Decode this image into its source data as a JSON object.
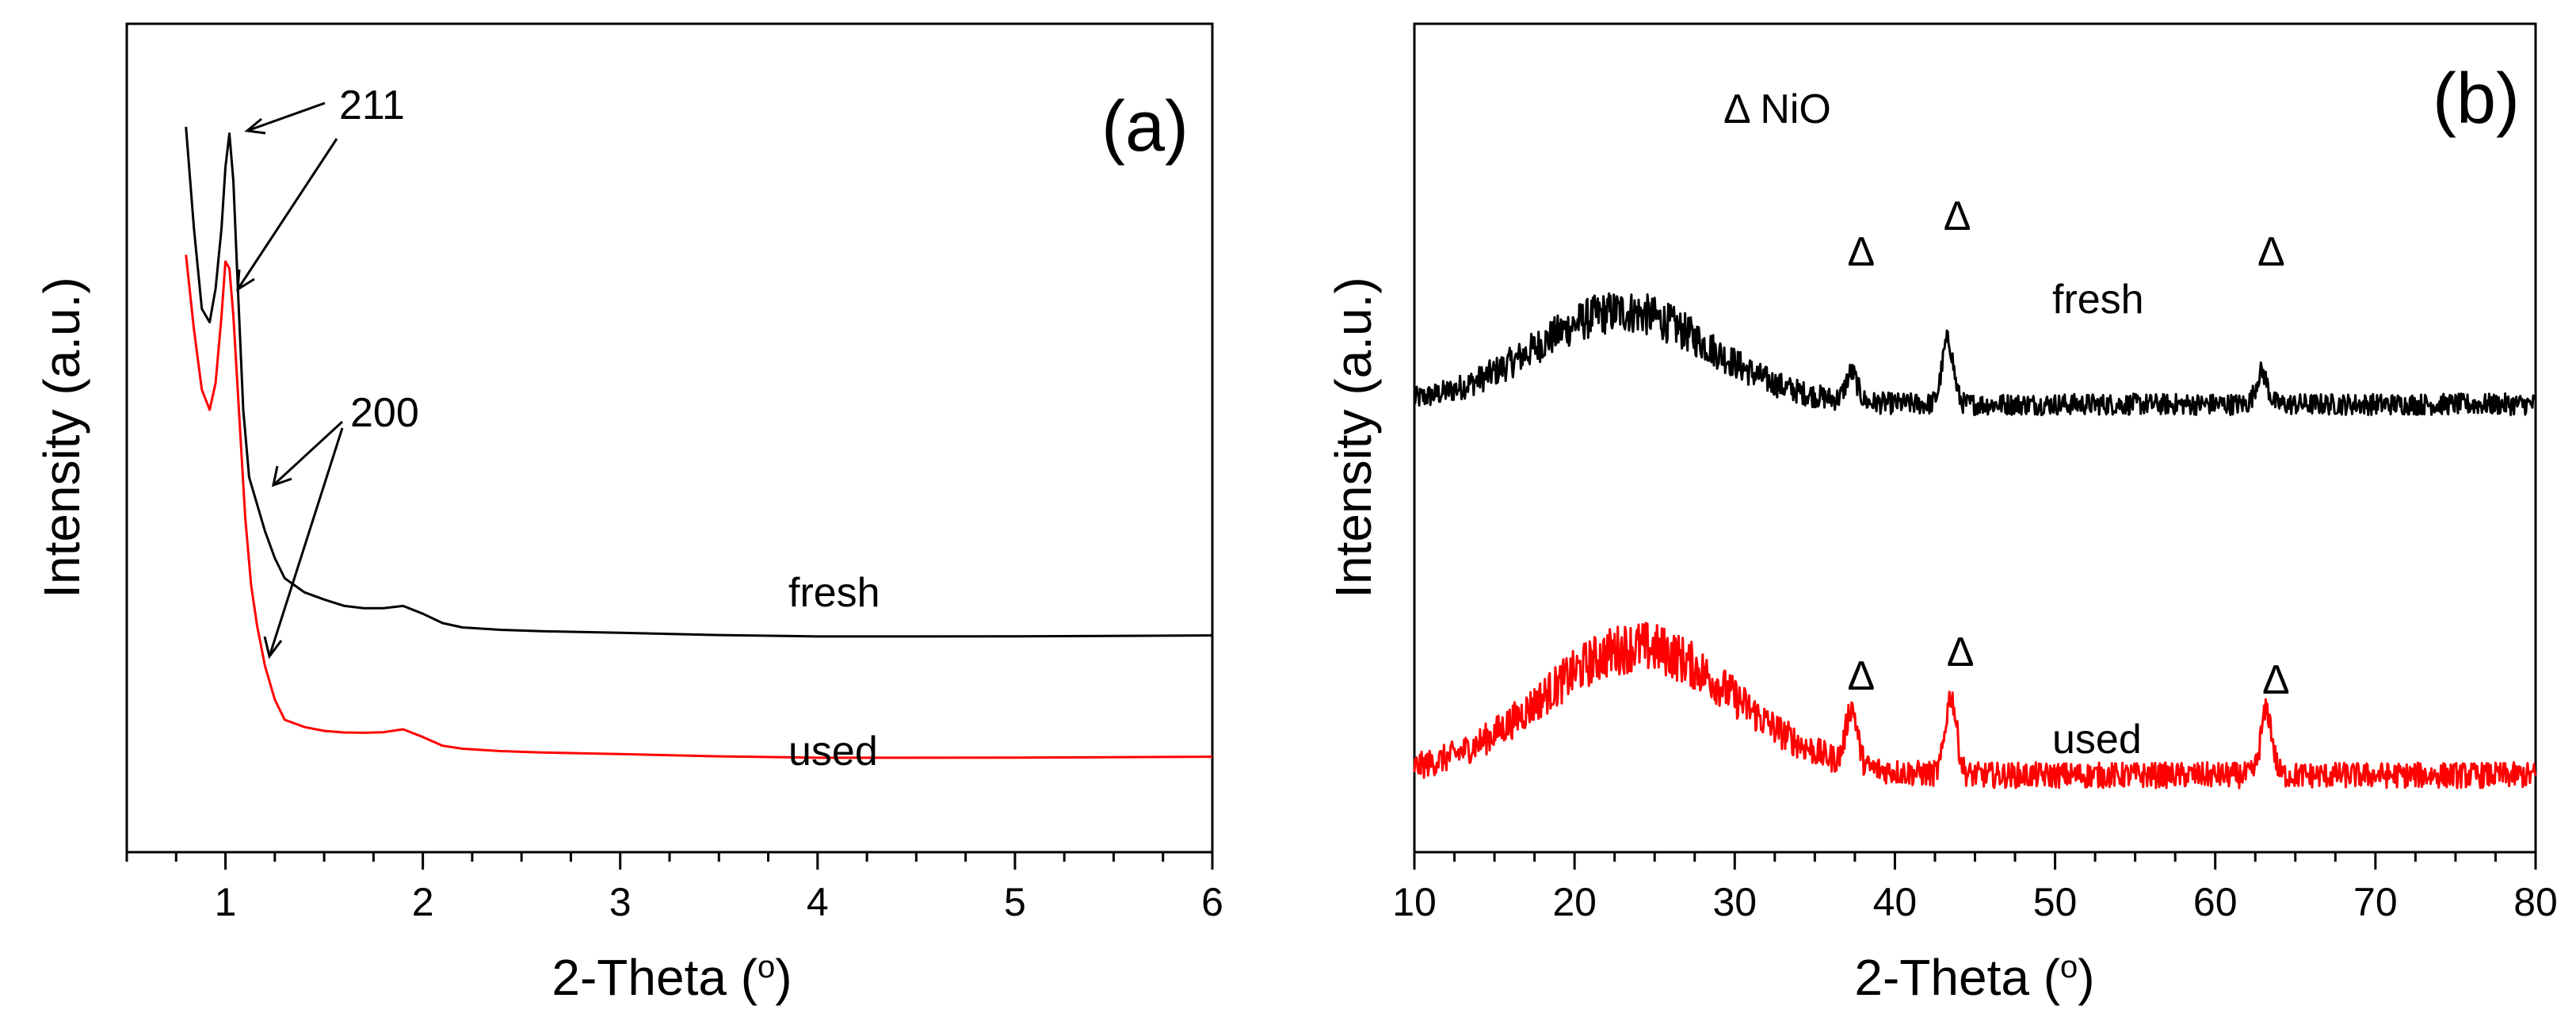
{
  "chart_data": [
    {
      "panel": "(a)",
      "type": "line",
      "xlabel": "2-Theta (°)",
      "xlabel_main": "2-Theta (",
      "xlabel_degree": "o",
      "xlabel_close": ")",
      "ylabel": "Intensity (a.u.)",
      "xlim": [
        0.5,
        6
      ],
      "ylim": [
        0,
        100
      ],
      "xticks": [
        1,
        2,
        3,
        4,
        5,
        6
      ],
      "xtick_labels": [
        "1",
        "2",
        "3",
        "4",
        "5",
        "6"
      ],
      "series": [
        {
          "name": "fresh",
          "color": "#000000",
          "x": [
            0.8,
            0.84,
            0.88,
            0.92,
            0.95,
            0.98,
            1.0,
            1.02,
            1.04,
            1.06,
            1.09,
            1.12,
            1.16,
            1.2,
            1.25,
            1.3,
            1.4,
            1.5,
            1.6,
            1.7,
            1.8,
            1.9,
            2.0,
            2.1,
            2.2,
            2.4,
            2.6,
            3.0,
            3.5,
            4.0,
            5.0,
            6.0
          ],
          "y": [
            100,
            85,
            73,
            71,
            76,
            85,
            94,
            99,
            92,
            78,
            58,
            48,
            44,
            40,
            36,
            33,
            31,
            30,
            29,
            28.5,
            28.4,
            28.8,
            27.8,
            26.5,
            25.8,
            25.3,
            25.0,
            24.8,
            24.6,
            24.5,
            24.5,
            24.5
          ]
        },
        {
          "name": "used",
          "color": "#ff0000",
          "x": [
            0.8,
            0.84,
            0.88,
            0.92,
            0.95,
            0.98,
            1.0,
            1.02,
            1.04,
            1.07,
            1.1,
            1.13,
            1.16,
            1.2,
            1.25,
            1.3,
            1.4,
            1.5,
            1.6,
            1.7,
            1.8,
            1.9,
            2.0,
            2.1,
            2.2,
            2.4,
            2.6,
            3.0,
            3.5,
            4.0,
            5.0,
            6.0
          ],
          "y": [
            81,
            70,
            61,
            58,
            62,
            72,
            80,
            79,
            72,
            57,
            42,
            32,
            26,
            20,
            15,
            12,
            11,
            10.5,
            10.2,
            10,
            10,
            10.5,
            9.5,
            8.3,
            7.8,
            7.3,
            7.0,
            6.8,
            6.6,
            6.5,
            6.5,
            6.5
          ]
        }
      ],
      "annotations": {
        "peak_211": "211",
        "peak_200": "200",
        "fresh_label": "fresh",
        "used_label": "used"
      }
    },
    {
      "panel": "(b)",
      "type": "line",
      "xlabel": "2-Theta (°)",
      "xlabel_main": "2-Theta (",
      "xlabel_degree": "o",
      "xlabel_close": ")",
      "ylabel": "Intensity (a.u.)",
      "xlim": [
        10,
        80
      ],
      "ylim": [
        0,
        100
      ],
      "xticks": [
        10,
        20,
        30,
        40,
        50,
        60,
        70,
        80
      ],
      "xtick_labels": [
        "10",
        "20",
        "30",
        "40",
        "50",
        "60",
        "70",
        "80"
      ],
      "legend_text": "Δ NiO",
      "marker_symbol": "Δ",
      "nio_peaks_2theta": [
        37.3,
        43.3,
        62.9
      ],
      "series": [
        {
          "name": "fresh",
          "color": "#000000",
          "baseline": 60,
          "amorphous_hump": {
            "center": 23,
            "height": 13,
            "width": 5.5
          },
          "peaks": [
            {
              "x": 37.3,
              "height": 4
            },
            {
              "x": 43.3,
              "height": 9
            },
            {
              "x": 62.9,
              "height": 4.5
            }
          ],
          "noise_amplitude": 5
        },
        {
          "name": "used",
          "color": "#ff0000",
          "baseline": 8,
          "amorphous_hump": {
            "center": 24,
            "height": 18,
            "width": 6
          },
          "peaks": [
            {
              "x": 37.3,
              "height": 8
            },
            {
              "x": 43.5,
              "height": 11
            },
            {
              "x": 63.2,
              "height": 9
            }
          ],
          "noise_amplitude": 6
        }
      ],
      "annotations": {
        "fresh_label": "fresh",
        "used_label": "used"
      }
    }
  ]
}
